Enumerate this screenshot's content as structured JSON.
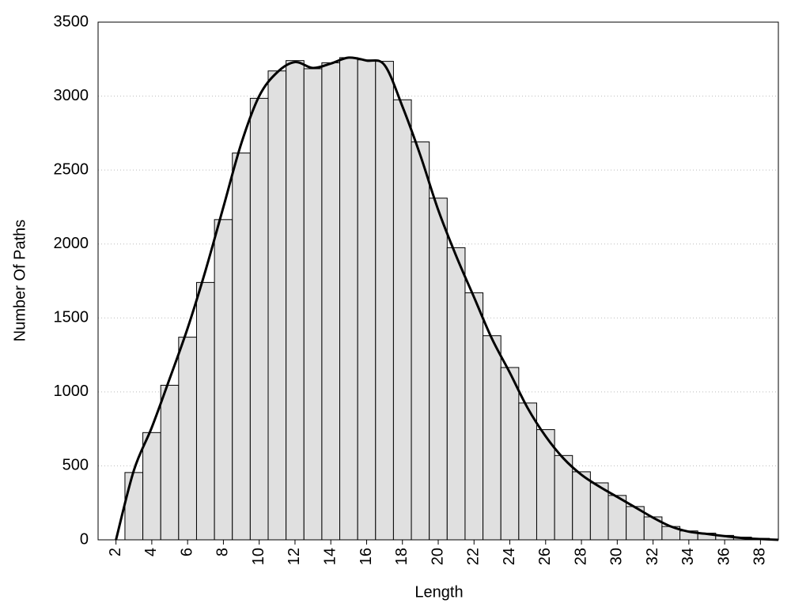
{
  "chart_data": {
    "type": "histogram",
    "x_label": "Length",
    "y_label": "Number Of Paths",
    "bins": [
      2.5,
      3.5,
      4.5,
      5.5,
      6.5,
      7.5,
      8.5,
      9.5,
      10.5,
      11.5,
      12.5,
      13.5,
      14.5,
      15.5,
      16.5,
      17.5,
      18.5,
      19.5,
      20.5,
      21.5,
      22.5,
      23.5,
      24.5,
      25.5,
      26.5,
      27.5,
      28.5,
      29.5,
      30.5,
      31.5,
      32.5,
      33.5,
      34.5,
      35.5,
      36.5,
      37.5,
      38.5
    ],
    "counts": [
      455,
      725,
      1045,
      1370,
      1740,
      2165,
      2615,
      2985,
      3170,
      3240,
      3185,
      3225,
      3260,
      3245,
      3235,
      2975,
      2690,
      2310,
      1975,
      1670,
      1380,
      1165,
      925,
      745,
      570,
      460,
      385,
      300,
      225,
      155,
      90,
      60,
      45,
      30,
      18,
      10
    ],
    "color": "#e0e0e0",
    "curve": {
      "color": "#000000",
      "x": [
        2,
        3,
        4,
        5,
        6,
        7,
        8,
        9,
        10,
        11,
        12,
        13,
        14,
        15,
        16,
        17,
        18,
        19,
        20,
        21,
        22,
        23,
        24,
        25,
        26,
        27,
        28,
        29,
        30,
        31,
        32,
        33,
        34,
        35,
        36,
        37,
        38,
        39
      ],
      "values": [
        0,
        470,
        760,
        1090,
        1430,
        1820,
        2250,
        2680,
        3000,
        3160,
        3230,
        3190,
        3220,
        3260,
        3240,
        3210,
        2930,
        2600,
        2230,
        1920,
        1640,
        1360,
        1130,
        890,
        700,
        550,
        440,
        360,
        290,
        220,
        150,
        90,
        55,
        40,
        25,
        12,
        5,
        0
      ]
    },
    "xlim": [
      1,
      39
    ],
    "ylim": [
      0,
      3500
    ],
    "xticks": [
      2,
      4,
      6,
      8,
      10,
      12,
      14,
      16,
      18,
      20,
      22,
      24,
      26,
      28,
      30,
      32,
      34,
      36,
      38
    ],
    "yticks": [
      0,
      500,
      1000,
      1500,
      2000,
      2500,
      3000,
      3500
    ],
    "grid": true
  }
}
